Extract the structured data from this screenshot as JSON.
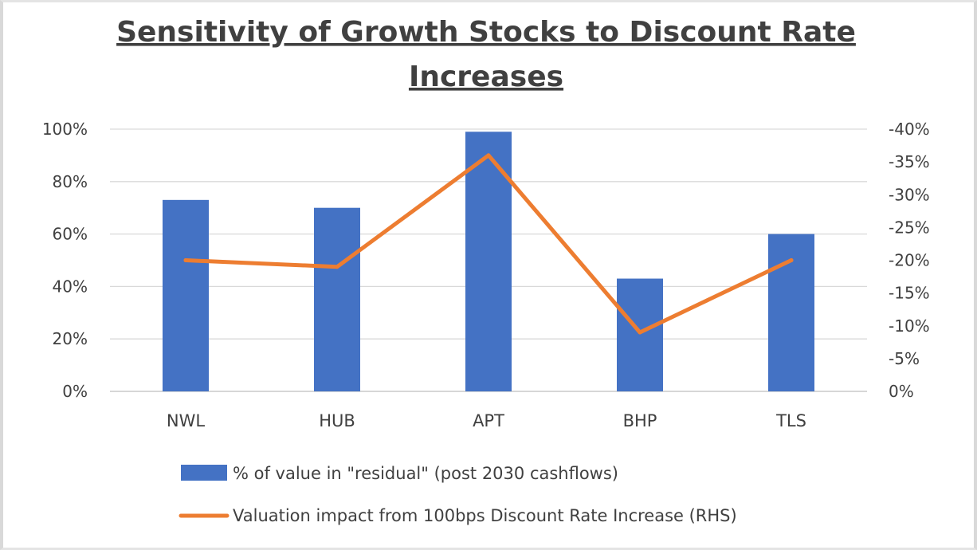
{
  "chart_data": {
    "type": "bar",
    "title_lines": [
      "Sensitivity of Growth Stocks to Discount Rate",
      "Increases"
    ],
    "categories": [
      "NWL",
      "HUB",
      "APT",
      "BHP",
      "TLS"
    ],
    "series": [
      {
        "name": "% of value in \"residual\" (post 2030 cashflows)",
        "type": "bar",
        "axis": "left",
        "color": "#4472C4",
        "values": [
          0.73,
          0.7,
          0.99,
          0.43,
          0.6
        ]
      },
      {
        "name": "Valuation impact from 100bps Discount Rate Increase (RHS)",
        "type": "line",
        "axis": "right",
        "color": "#ED7D31",
        "values": [
          -0.2,
          -0.19,
          -0.36,
          -0.09,
          -0.2
        ]
      }
    ],
    "y_left": {
      "min": 0,
      "max": 1,
      "ticks": [
        0,
        0.2,
        0.4,
        0.6,
        0.8,
        1.0
      ],
      "tick_labels": [
        "0%",
        "20%",
        "40%",
        "60%",
        "80%",
        "100%"
      ]
    },
    "y_right": {
      "min": 0,
      "max": -0.4,
      "ticks": [
        0,
        -0.05,
        -0.1,
        -0.15,
        -0.2,
        -0.25,
        -0.3,
        -0.35,
        -0.4
      ],
      "tick_labels": [
        "0%",
        "-5%",
        "-10%",
        "-15%",
        "-20%",
        "-25%",
        "-30%",
        "-35%",
        "-40%"
      ]
    },
    "grid": true,
    "legend_position": "bottom"
  }
}
